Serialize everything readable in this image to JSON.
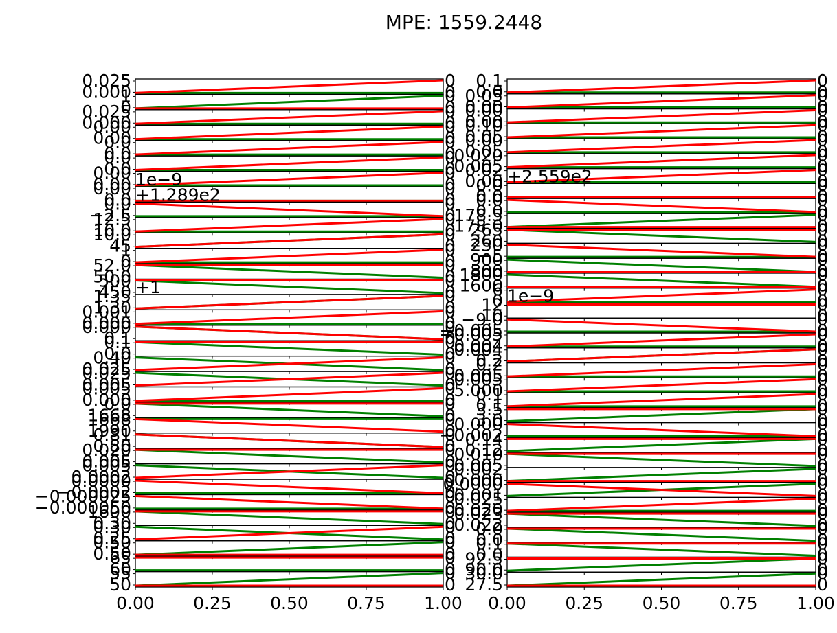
{
  "title": "MPE: 1559.2448",
  "chart_data": [
    {
      "type": "line",
      "title": "",
      "xlabel": "",
      "ylabel": "",
      "xlim": [
        0,
        1
      ],
      "xtick_labels": [
        "0.00",
        "0.25",
        "0.50",
        "0.75",
        "1.00"
      ],
      "series_colors": {
        "red": "#ff0000",
        "green": "#008000"
      },
      "subplots": [
        {
          "ytick_labels": [
            "0.025",
            "0.000"
          ],
          "red": [
            0,
            1
          ],
          "green": [
            0,
            0
          ]
        },
        {
          "ytick_labels": [
            "1",
            "0"
          ],
          "red": [
            0,
            0
          ],
          "green": [
            0,
            1
          ]
        },
        {
          "ytick_labels": [
            "0.025",
            "0.000"
          ],
          "red": [
            0,
            1
          ],
          "green": [
            0,
            0
          ]
        },
        {
          "ytick_labels": [
            "0.00",
            "0.00"
          ],
          "red": [
            0,
            1
          ],
          "green": [
            0,
            0
          ]
        },
        {
          "ytick_labels": [
            "0.0",
            "0.0"
          ],
          "red": [
            0,
            1
          ],
          "green": [
            0,
            0
          ]
        },
        {
          "ytick_labels": [
            "0.0",
            "0.0"
          ],
          "red": [
            0,
            1
          ],
          "green": [
            0,
            0
          ]
        },
        {
          "ytick_labels": [
            "0.00",
            "0.00"
          ],
          "red": [
            0,
            1
          ],
          "green": [
            0,
            0
          ]
        },
        {
          "ytick_labels": [
            "0.00",
            "0.0"
          ],
          "offset": "1e−9",
          "red": [
            0,
            0
          ],
          "green": [
            0,
            0
          ]
        },
        {
          "ytick_labels": [
            "0.0",
            "−2.5"
          ],
          "offset": "+1.289e2",
          "red": [
            1,
            0
          ],
          "green": [
            0,
            0
          ]
        },
        {
          "ytick_labels": [
            "12.5",
            "10.0"
          ],
          "red": [
            0,
            1
          ],
          "green": [
            0,
            0
          ]
        },
        {
          "ytick_labels": [
            "10.0",
            "45"
          ],
          "red": [
            0,
            1
          ],
          "green": [
            0,
            1
          ]
        },
        {
          "ytick_labels": [
            "1",
            "0"
          ],
          "red": [
            0,
            1
          ],
          "green": [
            0,
            0
          ]
        },
        {
          "ytick_labels": [
            "52.0",
            "50.0"
          ],
          "red": [
            1,
            1
          ],
          "green": [
            1,
            0
          ]
        },
        {
          "ytick_labels": [
            "500",
            "450"
          ],
          "red": [
            1,
            1
          ],
          "green": [
            1,
            0
          ]
        },
        {
          "ytick_labels": [
            "1.35",
            "1.30"
          ],
          "offset": "+1",
          "red": [
            0,
            1
          ],
          "green": [
            0,
            1
          ]
        },
        {
          "ytick_labels": [
            "0.001",
            "0.000"
          ],
          "red": [
            0,
            1
          ],
          "green": [
            0,
            0
          ]
        },
        {
          "ytick_labels": [
            "0.000",
            "0.1"
          ],
          "red": [
            1,
            0
          ],
          "green": [
            1,
            0
          ]
        },
        {
          "ytick_labels": [
            "0.1",
            "0.0"
          ],
          "red": [
            1,
            1
          ],
          "green": [
            1,
            0
          ]
        },
        {
          "ytick_labels": [
            "0.40",
            "0.025"
          ],
          "red": [
            0,
            1
          ],
          "green": [
            1,
            0
          ]
        },
        {
          "ytick_labels": [
            "0.025",
            "0.005"
          ],
          "red": [
            0,
            1
          ],
          "green": [
            1,
            0
          ]
        },
        {
          "ytick_labels": [
            "0.005",
            "0.000"
          ],
          "red": [
            0,
            1
          ],
          "green": [
            0,
            0
          ]
        },
        {
          "ytick_labels": [
            "0.0",
            "1668"
          ],
          "red": [
            1,
            1
          ],
          "green": [
            1,
            0
          ]
        },
        {
          "ytick_labels": [
            "1668",
            "1990"
          ],
          "red": [
            1,
            0
          ],
          "green": [
            1,
            1
          ]
        },
        {
          "ytick_labels": [
            "0.81",
            "0.80"
          ],
          "red": [
            1,
            0
          ],
          "green": [
            1,
            0
          ]
        },
        {
          "ytick_labels": [
            "0.020",
            "0.005"
          ],
          "red": [
            1,
            1
          ],
          "green": [
            1,
            0
          ]
        },
        {
          "ytick_labels": [
            "0.005",
            "0.0002"
          ],
          "red": [
            0,
            1
          ],
          "green": [
            1,
            0
          ]
        },
        {
          "ytick_labels": [
            "0.0000",
            "−0.0002"
          ],
          "red": [
            1,
            0
          ],
          "green": [
            0,
            0
          ]
        },
        {
          "ytick_labels": [
            "−0.000025",
            "−0.000050"
          ],
          "red": [
            1,
            0
          ],
          "green": [
            0,
            0
          ]
        },
        {
          "ytick_labels": [
            "1600",
            "0.30"
          ],
          "red": [
            1,
            1
          ],
          "green": [
            1,
            0
          ]
        },
        {
          "ytick_labels": [
            "0.30",
            "0.25"
          ],
          "red": [
            0,
            1
          ],
          "green": [
            1,
            0
          ]
        },
        {
          "ytick_labels": [
            "0.50",
            "0.50"
          ],
          "red": [
            0,
            0
          ],
          "green": [
            0,
            1
          ]
        },
        {
          "ytick_labels": [
            "65",
            "60"
          ],
          "red": [
            1,
            1
          ],
          "green": [
            0,
            0
          ]
        },
        {
          "ytick_labels": [
            "55",
            "50"
          ],
          "red": [
            0,
            0
          ],
          "green": [
            0,
            1
          ]
        }
      ]
    },
    {
      "type": "line",
      "title": "",
      "xlabel": "",
      "ylabel": "",
      "xlim": [
        0,
        1
      ],
      "xtick_labels": [
        "0.00",
        "0.25",
        "0.50",
        "0.75",
        "1.00"
      ],
      "series_colors": {
        "red": "#ff0000",
        "green": "#008000"
      },
      "subplots": [
        {
          "ytick_labels": [
            "0.1",
            "0.0"
          ],
          "red": [
            0,
            1
          ],
          "green": [
            0,
            0
          ]
        },
        {
          "ytick_labels": [
            "0.05",
            "0.00"
          ],
          "red": [
            0,
            1
          ],
          "green": [
            0,
            0
          ]
        },
        {
          "ytick_labels": [
            "0.00",
            "0.00"
          ],
          "red": [
            0,
            1
          ],
          "green": [
            0,
            0
          ]
        },
        {
          "ytick_labels": [
            "0.10",
            "0.05"
          ],
          "red": [
            0,
            1
          ],
          "green": [
            0,
            0
          ]
        },
        {
          "ytick_labels": [
            "0.00",
            "0.05"
          ],
          "red": [
            0,
            1
          ],
          "green": [
            0,
            0
          ]
        },
        {
          "ytick_labels": [
            "0.020",
            "0.005"
          ],
          "red": [
            0,
            1
          ],
          "green": [
            0,
            0
          ]
        },
        {
          "ytick_labels": [
            "0.02",
            "0.00"
          ],
          "red": [
            0,
            1
          ],
          "green": [
            0,
            0
          ]
        },
        {
          "ytick_labels": [
            "0.0",
            "0.0"
          ],
          "offset": "+2.559e2",
          "red": [
            0,
            0
          ],
          "green": [
            0,
            0
          ]
        },
        {
          "ytick_labels": [
            "0.0",
            "0.0"
          ],
          "red": [
            1,
            0
          ],
          "green": [
            0,
            0
          ]
        },
        {
          "ytick_labels": [
            "178.5",
            "178.0"
          ],
          "red": [
            0,
            0
          ],
          "green": [
            0,
            1
          ]
        },
        {
          "ytick_labels": [
            "265",
            "260"
          ],
          "red": [
            1,
            1
          ],
          "green": [
            1,
            0
          ]
        },
        {
          "ytick_labels": [
            "250",
            "−5"
          ],
          "red": [
            1,
            0
          ],
          "green": [
            0,
            0
          ]
        },
        {
          "ytick_labels": [
            "900",
            "800"
          ],
          "red": [
            0,
            0
          ],
          "green": [
            1,
            0
          ]
        },
        {
          "ytick_labels": [
            "1800",
            "1600"
          ],
          "red": [
            0,
            0
          ],
          "green": [
            1,
            0
          ]
        },
        {
          "ytick_labels": [
            "6",
            "0"
          ],
          "red": [
            0,
            1
          ],
          "green": [
            0,
            0
          ]
        },
        {
          "ytick_labels": [
            "12",
            "10"
          ],
          "offset": "1e−9",
          "red": [
            1,
            1
          ],
          "green": [
            1,
            1
          ]
        },
        {
          "ytick_labels": [
            "−9.0",
            "−0.005"
          ],
          "red": [
            1,
            0
          ],
          "green": [
            0,
            0
          ]
        },
        {
          "ytick_labels": [
            "−0.005",
            "0.004"
          ],
          "red": [
            0,
            1
          ],
          "green": [
            0,
            0
          ]
        },
        {
          "ytick_labels": [
            "0.004",
            "0.2"
          ],
          "red": [
            0,
            1
          ],
          "green": [
            0,
            1
          ]
        },
        {
          "ytick_labels": [
            "0.2",
            "0.005"
          ],
          "red": [
            0,
            1
          ],
          "green": [
            0,
            0
          ]
        },
        {
          "ytick_labels": [
            "0.005",
            "5.000"
          ],
          "red": [
            0,
            1
          ],
          "green": [
            0,
            0
          ]
        },
        {
          "ytick_labels": [
            "0.1",
            "0.1"
          ],
          "red": [
            0,
            1
          ],
          "green": [
            0,
            0
          ]
        },
        {
          "ytick_labels": [
            "3.5",
            "3.0"
          ],
          "red": [
            1,
            1
          ],
          "green": [
            0,
            1
          ]
        },
        {
          "ytick_labels": [
            "0.000",
            "−0.002"
          ],
          "red": [
            1,
            0
          ],
          "green": [
            0,
            0
          ]
        },
        {
          "ytick_labels": [
            "0.14",
            "0.12"
          ],
          "red": [
            1,
            1
          ],
          "green": [
            0,
            1
          ]
        },
        {
          "ytick_labels": [
            "0.010",
            "0.005"
          ],
          "red": [
            1,
            1
          ],
          "green": [
            1,
            0
          ]
        },
        {
          "ytick_labels": [
            "0.002",
            "0.000"
          ],
          "red": [
            0,
            0
          ],
          "green": [
            0,
            1
          ]
        },
        {
          "ytick_labels": [
            "0.0000",
            "0.001"
          ],
          "red": [
            1,
            0
          ],
          "green": [
            0,
            1
          ]
        },
        {
          "ytick_labels": [
            "0.025",
            "0.020"
          ],
          "red": [
            0,
            1
          ],
          "green": [
            0,
            0
          ]
        },
        {
          "ytick_labels": [
            "0.023",
            "0.022"
          ],
          "red": [
            1,
            1
          ],
          "green": [
            1,
            0
          ]
        },
        {
          "ytick_labels": [
            "0.0",
            "0.0"
          ],
          "red": [
            1,
            1
          ],
          "green": [
            1,
            0
          ]
        },
        {
          "ytick_labels": [
            "0.1",
            "0.0"
          ],
          "red": [
            1,
            1
          ],
          "green": [
            1,
            0
          ]
        },
        {
          "ytick_labels": [
            "92.5",
            "90.0"
          ],
          "red": [
            1,
            1
          ],
          "green": [
            0,
            1
          ]
        },
        {
          "ytick_labels": [
            "30.0",
            "27.5"
          ],
          "red": [
            0,
            0
          ],
          "green": [
            0,
            1
          ]
        }
      ]
    }
  ]
}
